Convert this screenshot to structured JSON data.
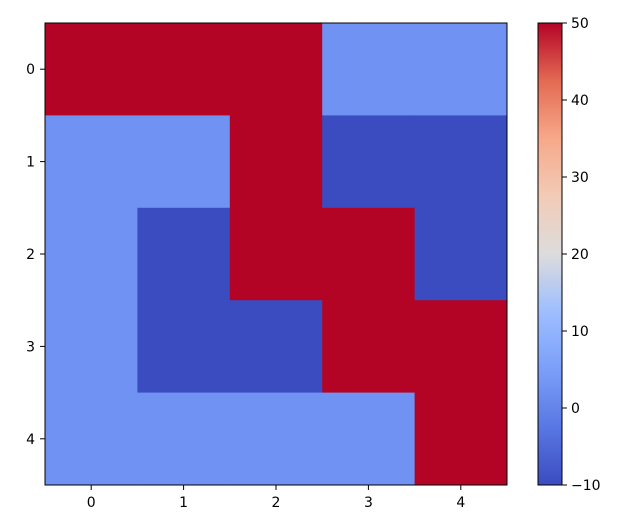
{
  "chart_data": {
    "type": "heatmap",
    "title": "",
    "xlabel": "",
    "ylabel": "",
    "x_categories": [
      "0",
      "1",
      "2",
      "3",
      "4"
    ],
    "y_categories": [
      "0",
      "1",
      "2",
      "3",
      "4"
    ],
    "values": [
      [
        50,
        50,
        50,
        0,
        0
      ],
      [
        0,
        0,
        50,
        -10,
        -10
      ],
      [
        0,
        -10,
        50,
        50,
        -10
      ],
      [
        0,
        -10,
        -10,
        50,
        50
      ],
      [
        0,
        0,
        0,
        0,
        50
      ]
    ],
    "colormap": "coolwarm",
    "vmin": -10,
    "vmax": 50,
    "colorbar_ticks": [
      "−10",
      "0",
      "10",
      "20",
      "30",
      "40",
      "50"
    ],
    "colorbar_tick_values": [
      -10,
      0,
      10,
      20,
      30,
      40,
      50
    ],
    "colors": {
      "-10": "#3b4cc0",
      "0": "#6f92f3",
      "50": "#b40426"
    }
  }
}
